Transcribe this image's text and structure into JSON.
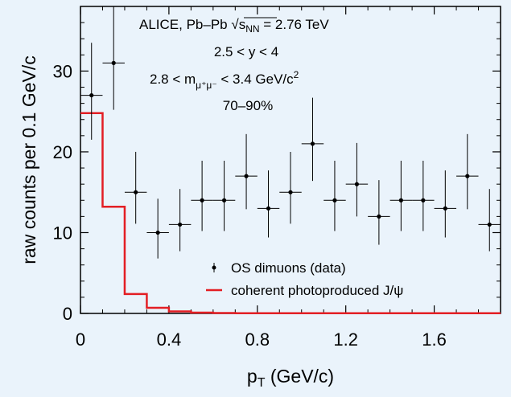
{
  "chart_data": {
    "type": "scatter",
    "xlabel": "p",
    "xlabel_sub": "T",
    "xlabel_unit": " (GeV/c)",
    "ylabel": "raw counts per 0.1 GeV/c",
    "xlim": [
      0,
      1.9
    ],
    "ylim": [
      0,
      38
    ],
    "xticks": [
      0,
      0.4,
      0.8,
      1.2,
      1.6
    ],
    "xtick_labels": [
      "0",
      "0.4",
      "0.8",
      "1.2",
      "1.6"
    ],
    "yticks": [
      0,
      10,
      20,
      30
    ],
    "ytick_labels": [
      "0",
      "10",
      "20",
      "30"
    ],
    "grid": false,
    "legend_position": "bottom-right",
    "annotations": {
      "line1_prefix": "ALICE, Pb–Pb ",
      "line1_sqrt": "√",
      "line1_s": "s",
      "line1_sub": "NN",
      "line1_value": " = 2.76 TeV",
      "line2": "2.5 < y < 4",
      "line3_prefix": "2.8 < m",
      "line3_sub": "μ⁺μ⁻",
      "line3_value": " < 3.4 GeV/c",
      "line3_sup": "2",
      "line4": "70–90%"
    },
    "series": [
      {
        "name": "OS dimuons (data)",
        "color": "#000000",
        "x": [
          0.05,
          0.15,
          0.25,
          0.35,
          0.45,
          0.55,
          0.65,
          0.75,
          0.85,
          0.95,
          1.05,
          1.15,
          1.25,
          1.35,
          1.45,
          1.55,
          1.65,
          1.75,
          1.85
        ],
        "y": [
          27,
          31,
          15,
          10,
          11,
          14,
          14,
          17,
          13,
          15,
          21,
          14,
          16,
          12,
          14,
          14,
          13,
          17,
          11
        ],
        "y_err_low": [
          5.5,
          5.8,
          3.9,
          3.2,
          3.3,
          3.8,
          3.8,
          4.1,
          3.6,
          3.9,
          4.6,
          3.8,
          4.0,
          3.5,
          3.8,
          3.8,
          3.6,
          4.1,
          3.3
        ],
        "y_err_high": [
          6.5,
          7.0,
          5.0,
          4.2,
          4.4,
          4.9,
          4.9,
          5.2,
          4.7,
          5.0,
          5.7,
          4.9,
          5.1,
          4.5,
          4.9,
          4.9,
          4.7,
          5.2,
          4.4
        ]
      },
      {
        "name": "coherent photoproduced J/ψ",
        "color": "#e31e24",
        "type": "step",
        "bin_edges": [
          0,
          0.1,
          0.2,
          0.3,
          0.4,
          0.5,
          0.6,
          0.7,
          0.8,
          0.9,
          1.0,
          1.1,
          1.2,
          1.3,
          1.4,
          1.5,
          1.6,
          1.7,
          1.8,
          1.9
        ],
        "values": [
          24.8,
          13.2,
          2.4,
          0.7,
          0.25,
          0.1,
          0.05,
          0.03,
          0.02,
          0.02,
          0.02,
          0.02,
          0.02,
          0.02,
          0.02,
          0.02,
          0.02,
          0.02,
          0.02
        ]
      }
    ]
  }
}
